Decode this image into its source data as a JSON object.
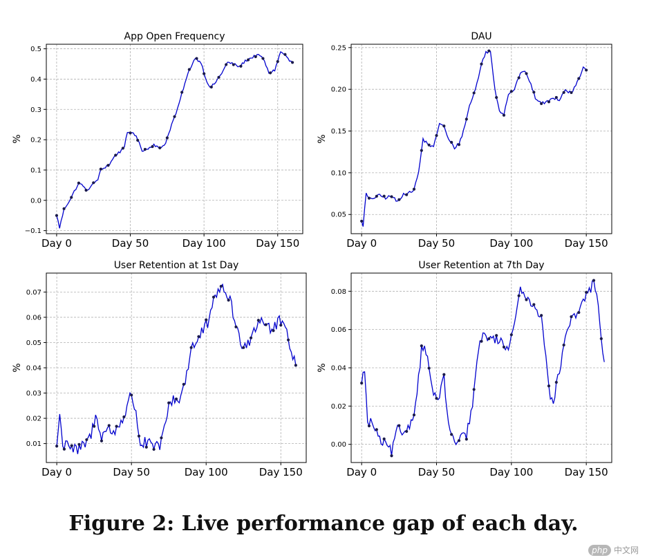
{
  "caption": "Figure 2: Live performance gap of each day.",
  "watermark": {
    "logo_text": "php",
    "text": "中文网"
  },
  "chart_data": [
    {
      "type": "line",
      "title": "App Open Frequency",
      "ylabel": "%",
      "xlim": [
        -7,
        167
      ],
      "ylim": [
        -0.11,
        0.515
      ],
      "xticks": [
        0,
        50,
        100,
        150
      ],
      "xtick_labels": [
        "Day 0",
        "Day 50",
        "Day 100",
        "Day 150"
      ],
      "yticks": [
        -0.1,
        0.0,
        0.1,
        0.2,
        0.3,
        0.4,
        0.5
      ],
      "ytick_labels": [
        "−0.1",
        "0.0",
        "0.1",
        "0.2",
        "0.3",
        "0.4",
        "0.5"
      ],
      "grid": true,
      "line_color": "#0000cd",
      "marker_color": "#1a1a4a",
      "anchors": [
        [
          0,
          -0.05
        ],
        [
          2,
          -0.09
        ],
        [
          5,
          -0.03
        ],
        [
          10,
          0.01
        ],
        [
          12,
          0.03
        ],
        [
          15,
          0.055
        ],
        [
          18,
          0.05
        ],
        [
          20,
          0.03
        ],
        [
          24,
          0.05
        ],
        [
          28,
          0.07
        ],
        [
          30,
          0.1
        ],
        [
          33,
          0.11
        ],
        [
          36,
          0.12
        ],
        [
          40,
          0.15
        ],
        [
          43,
          0.16
        ],
        [
          46,
          0.18
        ],
        [
          48,
          0.22
        ],
        [
          52,
          0.225
        ],
        [
          55,
          0.2
        ],
        [
          58,
          0.165
        ],
        [
          62,
          0.17
        ],
        [
          66,
          0.185
        ],
        [
          70,
          0.17
        ],
        [
          74,
          0.19
        ],
        [
          78,
          0.25
        ],
        [
          82,
          0.3
        ],
        [
          86,
          0.37
        ],
        [
          90,
          0.43
        ],
        [
          94,
          0.47
        ],
        [
          98,
          0.455
        ],
        [
          101,
          0.405
        ],
        [
          104,
          0.37
        ],
        [
          108,
          0.39
        ],
        [
          112,
          0.42
        ],
        [
          116,
          0.455
        ],
        [
          120,
          0.45
        ],
        [
          124,
          0.44
        ],
        [
          128,
          0.46
        ],
        [
          132,
          0.47
        ],
        [
          136,
          0.48
        ],
        [
          140,
          0.47
        ],
        [
          144,
          0.42
        ],
        [
          148,
          0.43
        ],
        [
          152,
          0.49
        ],
        [
          155,
          0.48
        ],
        [
          158,
          0.46
        ],
        [
          160,
          0.455
        ]
      ],
      "noise": 0.004,
      "marker_days": [
        0,
        5,
        10,
        15,
        20,
        25,
        30,
        35,
        40,
        45,
        50,
        55,
        60,
        65,
        70,
        75,
        80,
        85,
        90,
        95,
        100,
        105,
        110,
        115,
        120,
        125,
        130,
        135,
        140,
        145,
        150,
        155,
        160
      ]
    },
    {
      "type": "line",
      "title": "DAU",
      "ylabel": "%",
      "xlim": [
        -7,
        167
      ],
      "ylim": [
        0.027,
        0.254
      ],
      "xticks": [
        0,
        50,
        100,
        150
      ],
      "xtick_labels": [
        "Day 0",
        "Day 50",
        "Day 100",
        "Day 150"
      ],
      "yticks": [
        0.05,
        0.1,
        0.15,
        0.2,
        0.25
      ],
      "ytick_labels": [
        "0.05",
        "0.10",
        "0.15",
        "0.20",
        "0.25"
      ],
      "grid": true,
      "line_color": "#0000cd",
      "marker_color": "#1a1a4a",
      "anchors": [
        [
          0,
          0.042
        ],
        [
          1,
          0.037
        ],
        [
          3,
          0.075
        ],
        [
          5,
          0.068
        ],
        [
          8,
          0.07
        ],
        [
          12,
          0.073
        ],
        [
          16,
          0.07
        ],
        [
          20,
          0.072
        ],
        [
          24,
          0.065
        ],
        [
          28,
          0.075
        ],
        [
          32,
          0.076
        ],
        [
          35,
          0.08
        ],
        [
          38,
          0.1
        ],
        [
          41,
          0.14
        ],
        [
          44,
          0.135
        ],
        [
          48,
          0.13
        ],
        [
          52,
          0.16
        ],
        [
          55,
          0.155
        ],
        [
          58,
          0.14
        ],
        [
          62,
          0.13
        ],
        [
          65,
          0.135
        ],
        [
          68,
          0.15
        ],
        [
          72,
          0.18
        ],
        [
          76,
          0.2
        ],
        [
          80,
          0.23
        ],
        [
          83,
          0.245
        ],
        [
          86,
          0.245
        ],
        [
          89,
          0.2
        ],
        [
          92,
          0.175
        ],
        [
          95,
          0.17
        ],
        [
          98,
          0.195
        ],
        [
          102,
          0.2
        ],
        [
          106,
          0.22
        ],
        [
          110,
          0.22
        ],
        [
          113,
          0.205
        ],
        [
          116,
          0.19
        ],
        [
          120,
          0.183
        ],
        [
          124,
          0.185
        ],
        [
          128,
          0.19
        ],
        [
          132,
          0.188
        ],
        [
          136,
          0.2
        ],
        [
          140,
          0.195
        ],
        [
          144,
          0.21
        ],
        [
          148,
          0.225
        ],
        [
          150,
          0.223
        ]
      ],
      "noise": 0.0018,
      "marker_days": [
        0,
        5,
        10,
        15,
        20,
        25,
        30,
        35,
        40,
        45,
        50,
        55,
        60,
        65,
        70,
        75,
        80,
        85,
        90,
        95,
        100,
        105,
        110,
        115,
        120,
        125,
        130,
        135,
        140,
        145,
        150
      ]
    },
    {
      "type": "line",
      "title": "User Retention at 1st Day",
      "ylabel": "%",
      "xlim": [
        -7,
        167
      ],
      "ylim": [
        0.0025,
        0.0775
      ],
      "xticks": [
        0,
        50,
        100,
        150
      ],
      "xtick_labels": [
        "Day 0",
        "Day 50",
        "Day 100",
        "Day 150"
      ],
      "yticks": [
        0.01,
        0.02,
        0.03,
        0.04,
        0.05,
        0.06,
        0.07
      ],
      "ytick_labels": [
        "0.01",
        "0.02",
        "0.03",
        "0.04",
        "0.05",
        "0.06",
        "0.07"
      ],
      "grid": true,
      "line_color": "#0000cd",
      "marker_color": "#1a1a4a",
      "anchors": [
        [
          0,
          0.009
        ],
        [
          2,
          0.022
        ],
        [
          4,
          0.008
        ],
        [
          6,
          0.012
        ],
        [
          8,
          0.01
        ],
        [
          10,
          0.008
        ],
        [
          14,
          0.007
        ],
        [
          18,
          0.009
        ],
        [
          22,
          0.012
        ],
        [
          26,
          0.02
        ],
        [
          28,
          0.018
        ],
        [
          30,
          0.013
        ],
        [
          34,
          0.016
        ],
        [
          38,
          0.014
        ],
        [
          42,
          0.018
        ],
        [
          46,
          0.022
        ],
        [
          50,
          0.03
        ],
        [
          53,
          0.022
        ],
        [
          56,
          0.01
        ],
        [
          60,
          0.01
        ],
        [
          64,
          0.009
        ],
        [
          68,
          0.008
        ],
        [
          72,
          0.015
        ],
        [
          75,
          0.025
        ],
        [
          78,
          0.028
        ],
        [
          82,
          0.027
        ],
        [
          86,
          0.035
        ],
        [
          90,
          0.048
        ],
        [
          94,
          0.05
        ],
        [
          98,
          0.055
        ],
        [
          102,
          0.058
        ],
        [
          106,
          0.068
        ],
        [
          108,
          0.072
        ],
        [
          112,
          0.07
        ],
        [
          116,
          0.068
        ],
        [
          120,
          0.055
        ],
        [
          124,
          0.05
        ],
        [
          128,
          0.05
        ],
        [
          132,
          0.055
        ],
        [
          136,
          0.06
        ],
        [
          140,
          0.058
        ],
        [
          144,
          0.055
        ],
        [
          148,
          0.058
        ],
        [
          152,
          0.058
        ],
        [
          156,
          0.05
        ],
        [
          158,
          0.045
        ],
        [
          160,
          0.041
        ]
      ],
      "noise": 0.0026,
      "marker_days": [
        0,
        5,
        10,
        15,
        20,
        25,
        30,
        35,
        40,
        45,
        50,
        55,
        60,
        65,
        70,
        75,
        80,
        85,
        90,
        95,
        100,
        105,
        110,
        115,
        120,
        125,
        130,
        135,
        140,
        145,
        150,
        155,
        160
      ]
    },
    {
      "type": "line",
      "title": "User Retention at 7th Day",
      "ylabel": "%",
      "xlim": [
        -7,
        167
      ],
      "ylim": [
        -0.0095,
        0.0895
      ],
      "xticks": [
        0,
        50,
        100,
        150
      ],
      "xtick_labels": [
        "Day 0",
        "Day 50",
        "Day 100",
        "Day 150"
      ],
      "yticks": [
        0.0,
        0.02,
        0.04,
        0.06,
        0.08
      ],
      "ytick_labels": [
        "0.00",
        "0.02",
        "0.04",
        "0.06",
        "0.08"
      ],
      "grid": true,
      "line_color": "#0000cd",
      "marker_color": "#1a1a4a",
      "anchors": [
        [
          0,
          0.032
        ],
        [
          2,
          0.04
        ],
        [
          4,
          0.01
        ],
        [
          6,
          0.012
        ],
        [
          9,
          0.008
        ],
        [
          12,
          0.002
        ],
        [
          16,
          0.0
        ],
        [
          20,
          -0.004
        ],
        [
          24,
          0.008
        ],
        [
          28,
          0.006
        ],
        [
          32,
          0.01
        ],
        [
          36,
          0.02
        ],
        [
          40,
          0.05
        ],
        [
          42,
          0.052
        ],
        [
          45,
          0.04
        ],
        [
          48,
          0.025
        ],
        [
          52,
          0.025
        ],
        [
          55,
          0.035
        ],
        [
          58,
          0.01
        ],
        [
          62,
          0.0
        ],
        [
          66,
          0.003
        ],
        [
          70,
          0.005
        ],
        [
          74,
          0.02
        ],
        [
          78,
          0.05
        ],
        [
          82,
          0.058
        ],
        [
          86,
          0.055
        ],
        [
          90,
          0.055
        ],
        [
          94,
          0.053
        ],
        [
          98,
          0.05
        ],
        [
          102,
          0.065
        ],
        [
          106,
          0.08
        ],
        [
          108,
          0.078
        ],
        [
          112,
          0.075
        ],
        [
          116,
          0.073
        ],
        [
          120,
          0.065
        ],
        [
          124,
          0.04
        ],
        [
          126,
          0.025
        ],
        [
          128,
          0.023
        ],
        [
          132,
          0.038
        ],
        [
          136,
          0.055
        ],
        [
          140,
          0.065
        ],
        [
          144,
          0.068
        ],
        [
          148,
          0.075
        ],
        [
          150,
          0.078
        ],
        [
          152,
          0.08
        ],
        [
          155,
          0.085
        ],
        [
          158,
          0.075
        ],
        [
          160,
          0.053
        ],
        [
          162,
          0.043
        ]
      ],
      "noise": 0.0024,
      "marker_days": [
        0,
        5,
        10,
        15,
        20,
        25,
        30,
        35,
        40,
        45,
        50,
        55,
        60,
        65,
        70,
        75,
        80,
        85,
        90,
        95,
        100,
        105,
        110,
        115,
        120,
        125,
        130,
        135,
        140,
        145,
        150,
        155,
        160
      ]
    }
  ]
}
